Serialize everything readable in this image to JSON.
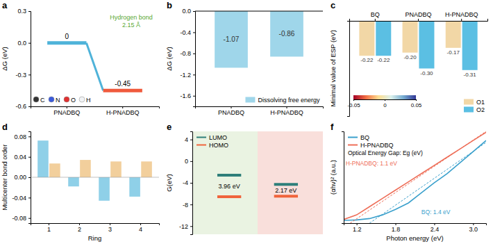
{
  "chart_data": [
    {
      "panel_label": "a",
      "type": "line",
      "categories": [
        "PNADBQ",
        "H-PNADBQ"
      ],
      "values": [
        0,
        -0.45
      ],
      "colors": [
        "#4fb3d9",
        "#f05a3c"
      ],
      "y_label": "ΔG (eV)",
      "ylim": [
        -0.6,
        0.3
      ],
      "yticks": [
        -0.6,
        -0.3,
        {
          "value": 0,
          "label": "0.0"
        },
        0.3
      ],
      "data_labels": true,
      "annotations": [
        "Hydrogen bond",
        "2.15 Å"
      ],
      "atom_legend": [
        {
          "label": "C",
          "color": "#333333"
        },
        {
          "label": "N",
          "color": "#3b5bdb"
        },
        {
          "label": "O",
          "color": "#e03131"
        },
        {
          "label": "H",
          "color": "#f1f3f5"
        }
      ]
    },
    {
      "panel_label": "b",
      "type": "bar",
      "categories": [
        "PNADBQ",
        "H-PNADBQ"
      ],
      "series": [
        {
          "name": "Dissolving free energy",
          "color": "#9fd6ea",
          "values": [
            -1.07,
            -0.86
          ]
        }
      ],
      "y_label": "ΔG (eV)",
      "ylim": [
        -1.8,
        0
      ],
      "yticks": [
        -1.6,
        -1.2,
        -0.8,
        -0.4,
        {
          "value": 0,
          "label": "0.0"
        }
      ],
      "data_labels": true,
      "legend": "bottom-right"
    },
    {
      "panel_label": "c",
      "type": "bar",
      "categories": [
        "BQ",
        "PNADBQ",
        "H-PNADBQ"
      ],
      "series": [
        {
          "name": "O1",
          "color": "#f2d7a6",
          "values": [
            -0.22,
            -0.2,
            -0.17
          ],
          "value_labels": [
            "-0.22",
            "-0.20",
            "-0.17"
          ]
        },
        {
          "name": "O2",
          "color": "#5bbfe3",
          "values": [
            -0.22,
            -0.3,
            -0.31
          ],
          "value_labels": [
            "-0.22",
            "-0.30",
            "-0.31"
          ]
        }
      ],
      "y_label": "Minimal value of ESP (eV)",
      "ylim": [
        -0.6,
        0
      ],
      "tick_labels": "x",
      "data_labels": true,
      "legend": "bottom-right",
      "colorbar": {
        "range": [
          -0.05,
          0.05
        ],
        "ticks": [
          -0.05,
          0,
          0.05
        ]
      }
    },
    {
      "panel_label": "d",
      "type": "bar",
      "categories": [
        "1",
        "2",
        "3",
        "4"
      ],
      "series": [
        {
          "color": "#8fd0e8",
          "values": [
            0.072,
            -0.018,
            -0.046,
            -0.038
          ]
        },
        {
          "color": "#f2cf9c",
          "values": [
            0.027,
            0.034,
            0.031,
            0.031
          ]
        }
      ],
      "x_label": "Ring",
      "y_label": "Multicenter bond order",
      "ylim": [
        -0.09,
        0.09
      ],
      "yticks": [
        -0.08,
        -0.04,
        {
          "value": 0,
          "label": "0.00"
        },
        0.04,
        0.08
      ]
    },
    {
      "panel_label": "e",
      "type": "energy_level",
      "series": [
        {
          "name": "LUMO",
          "color": "#2f7f7a",
          "values": [
            -2.6,
            -4.3
          ]
        },
        {
          "name": "HOMO",
          "color": "#f0643c",
          "values": [
            -6.56,
            -6.47
          ]
        }
      ],
      "y_label": "G(eV)",
      "ylim": [
        -13.5,
        5.5
      ],
      "yticks": [
        -12,
        -8,
        -4,
        0,
        4
      ],
      "annotations": [
        "3.96 eV",
        "2.17 eV"
      ],
      "legend": "top-left"
    },
    {
      "panel_label": "f",
      "type": "line",
      "series": [
        {
          "name": "BQ",
          "color": "#3aa0cc",
          "x": [
            1.0,
            1.2,
            1.4,
            1.6,
            1.8,
            2.0,
            2.2,
            2.4,
            2.6,
            2.8,
            3.0,
            3.2
          ],
          "values": [
            0.3,
            0.35,
            0.5,
            0.9,
            1.5,
            2.2,
            3.3,
            4.4,
            5.4,
            6.6,
            7.8,
            9.0
          ]
        },
        {
          "name": "H-PNADBQ",
          "color": "#ee6e58",
          "x": [
            1.0,
            1.2,
            1.4,
            1.6,
            1.8,
            2.0,
            2.2,
            2.4,
            2.6,
            2.8,
            3.0,
            3.2
          ],
          "values": [
            0.4,
            0.9,
            1.8,
            2.7,
            3.6,
            4.5,
            5.4,
            6.3,
            7.2,
            8.1,
            9.0,
            9.9
          ]
        },
        {
          "color": "#3aa0cc",
          "line_style": "dashed",
          "x": [
            1.4,
            3.2
          ],
          "values": [
            0,
            8.8
          ]
        },
        {
          "color": "#ee6e58",
          "line_style": "dashed",
          "x": [
            1.1,
            3.2
          ],
          "values": [
            0,
            10
          ]
        }
      ],
      "x_label": "Photon energy (eV)",
      "y_label": "(αhν)² (a.u.)",
      "xlim": [
        1,
        3.2
      ],
      "xticks": [
        1.2,
        1.8,
        2.4,
        {
          "value": 3,
          "label": "3.0"
        }
      ],
      "ylim": [
        0,
        10
      ],
      "tick_labels": "x",
      "subtitle": "Optical Energy Gap: Eg (eV)",
      "annotations": [
        "H-PNADBQ: 1.1 eV",
        "BQ: 1.4 eV"
      ],
      "legend": "top-left"
    }
  ]
}
